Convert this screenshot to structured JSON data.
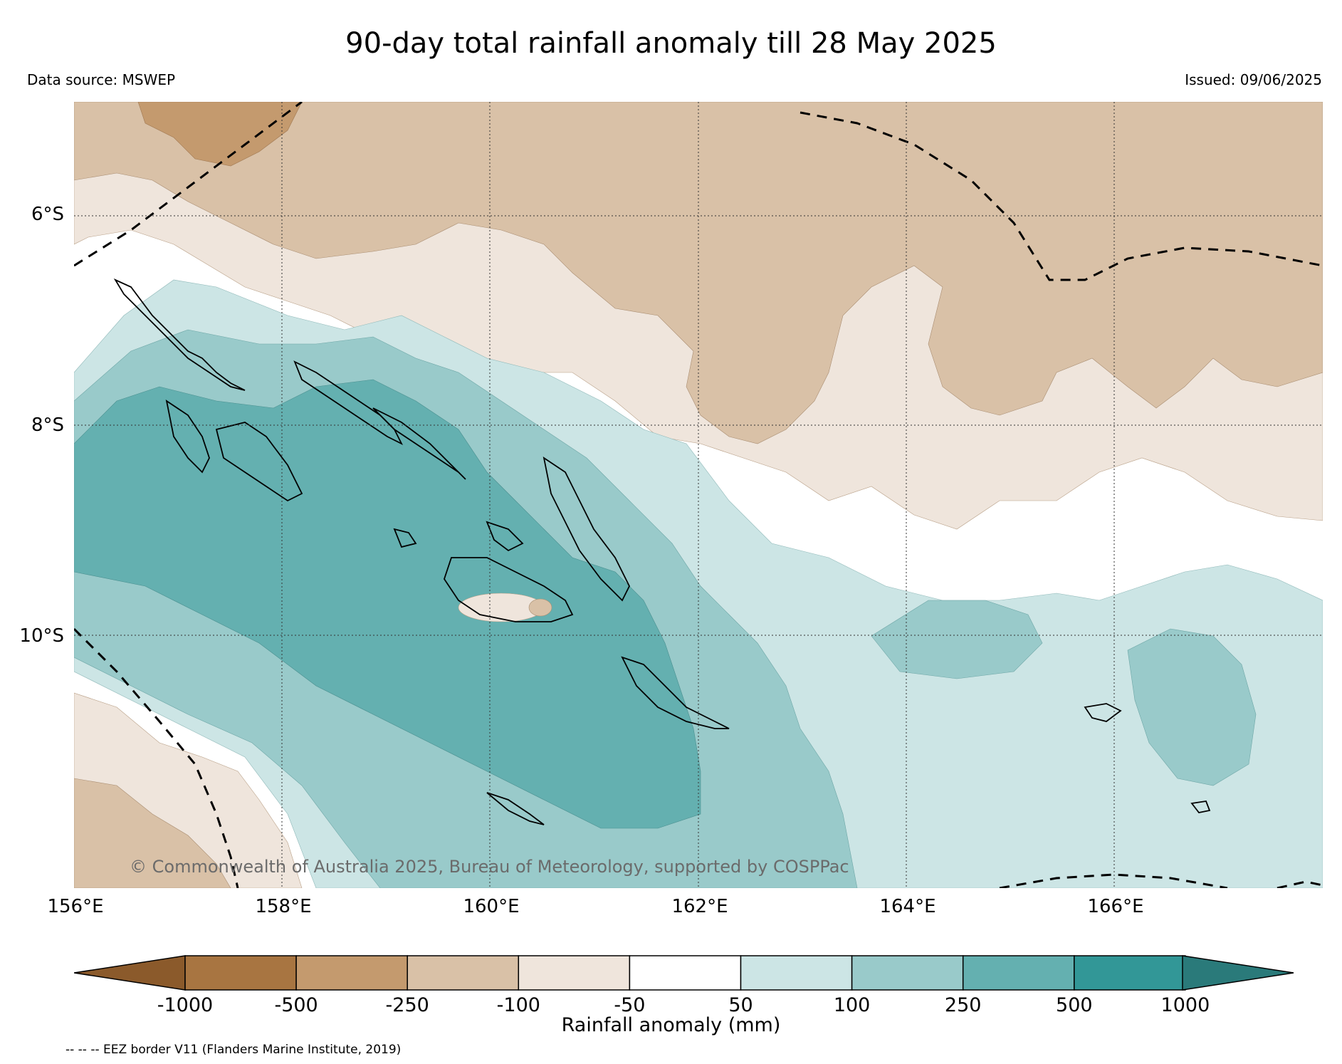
{
  "header": {
    "title": "90-day total rainfall anomaly till 28 May 2025",
    "source": "Data source: MSWEP",
    "issued": "Issued: 09/06/2025"
  },
  "map": {
    "lat_labels": [
      "6°S",
      "8°S",
      "10°S"
    ],
    "lon_labels": [
      "156°E",
      "158°E",
      "160°E",
      "162°E",
      "164°E",
      "166°E"
    ],
    "copyright": "© Commonwealth of Australia 2025, Bureau of Meteorology, supported by COSPPac",
    "lon_range": [
      156,
      168
    ],
    "lat_range": [
      -5,
      -12.5
    ]
  },
  "colorbar": {
    "title": "Rainfall anomaly (mm)",
    "ticks": [
      "-1000",
      "-500",
      "-250",
      "-100",
      "-50",
      "50",
      "100",
      "250",
      "500",
      "1000"
    ],
    "colors": [
      "#8b5a2b",
      "#a87541",
      "#c49a6e",
      "#d9c1a7",
      "#efe5dc",
      "#ffffff",
      "#cce5e5",
      "#99caca",
      "#64b0b0",
      "#329797",
      "#2a7a7a"
    ]
  },
  "footer": {
    "legend_note": "-- -- -- EEZ border V11 (Flanders Marine Institute, 2019)"
  }
}
